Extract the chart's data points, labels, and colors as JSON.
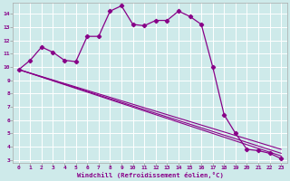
{
  "xlabel": "Windchill (Refroidissement éolien,°C)",
  "bg_color": "#ceeaea",
  "grid_color": "#ffffff",
  "line_color": "#880088",
  "xlim": [
    -0.5,
    23.5
  ],
  "ylim": [
    2.8,
    14.8
  ],
  "yticks": [
    3,
    4,
    5,
    6,
    7,
    8,
    9,
    10,
    11,
    12,
    13,
    14
  ],
  "xticks": [
    0,
    1,
    2,
    3,
    4,
    5,
    6,
    7,
    8,
    9,
    10,
    11,
    12,
    13,
    14,
    15,
    16,
    17,
    18,
    19,
    20,
    21,
    22,
    23
  ],
  "series_main": {
    "x": [
      0,
      1,
      2,
      3,
      4,
      5,
      6,
      7,
      8,
      9,
      10,
      11,
      12,
      13,
      14,
      15,
      16,
      17,
      18,
      19,
      20,
      21,
      22,
      23
    ],
    "y": [
      9.8,
      10.5,
      11.5,
      11.1,
      10.5,
      10.4,
      12.3,
      12.3,
      14.2,
      14.6,
      13.2,
      13.1,
      13.5,
      13.5,
      14.2,
      13.8,
      13.2,
      10.0,
      6.4,
      5.0,
      3.8,
      3.7,
      3.5,
      3.1
    ]
  },
  "series_linear": [
    {
      "x": [
        0,
        23
      ],
      "y": [
        9.8,
        3.3
      ]
    },
    {
      "x": [
        0,
        23
      ],
      "y": [
        9.8,
        3.5
      ]
    },
    {
      "x": [
        0,
        23
      ],
      "y": [
        9.8,
        3.8
      ]
    }
  ]
}
